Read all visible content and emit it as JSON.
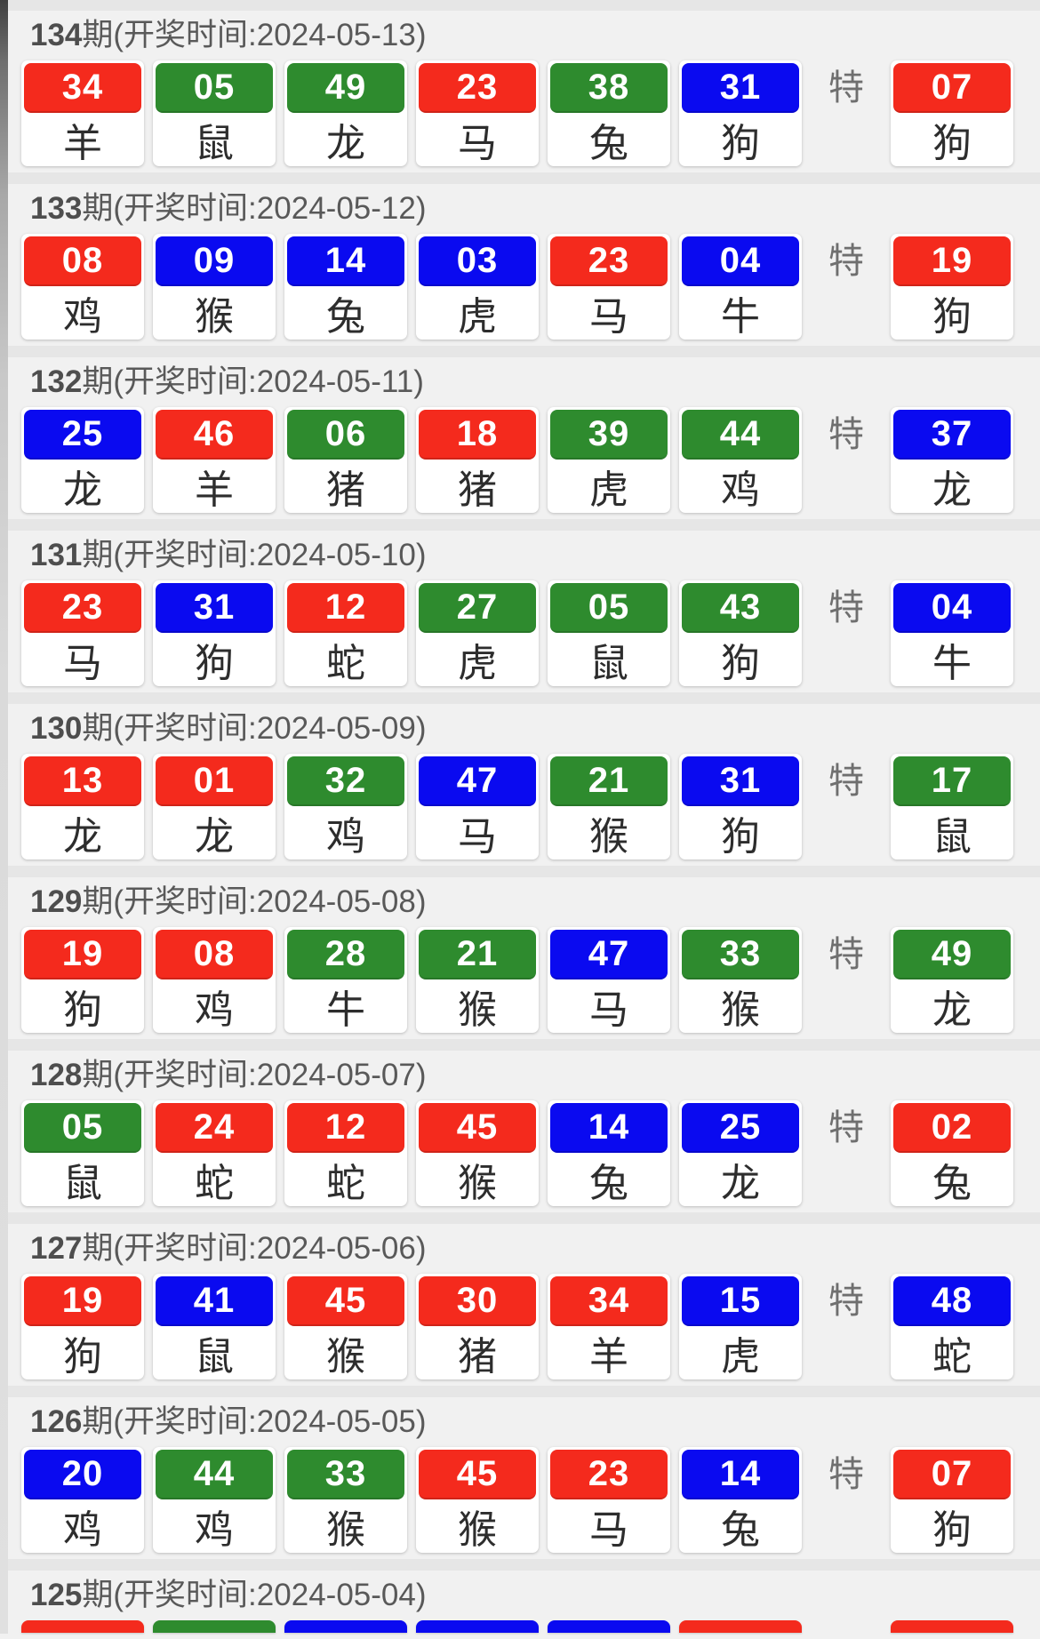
{
  "labels": {
    "header_prefix": "期(开奖时间:",
    "header_suffix": ")",
    "special": "特"
  },
  "colors": {
    "red": "#f42a1d",
    "green": "#2e8b2e",
    "blue": "#0a0af0"
  },
  "draws": [
    {
      "period": "134",
      "date": "2024-05-13",
      "balls": [
        {
          "num": "34",
          "color": "red",
          "zodiac": "羊"
        },
        {
          "num": "05",
          "color": "green",
          "zodiac": "鼠"
        },
        {
          "num": "49",
          "color": "green",
          "zodiac": "龙"
        },
        {
          "num": "23",
          "color": "red",
          "zodiac": "马"
        },
        {
          "num": "38",
          "color": "green",
          "zodiac": "兔"
        },
        {
          "num": "31",
          "color": "blue",
          "zodiac": "狗"
        }
      ],
      "special": {
        "num": "07",
        "color": "red",
        "zodiac": "狗"
      }
    },
    {
      "period": "133",
      "date": "2024-05-12",
      "balls": [
        {
          "num": "08",
          "color": "red",
          "zodiac": "鸡"
        },
        {
          "num": "09",
          "color": "blue",
          "zodiac": "猴"
        },
        {
          "num": "14",
          "color": "blue",
          "zodiac": "兔"
        },
        {
          "num": "03",
          "color": "blue",
          "zodiac": "虎"
        },
        {
          "num": "23",
          "color": "red",
          "zodiac": "马"
        },
        {
          "num": "04",
          "color": "blue",
          "zodiac": "牛"
        }
      ],
      "special": {
        "num": "19",
        "color": "red",
        "zodiac": "狗"
      }
    },
    {
      "period": "132",
      "date": "2024-05-11",
      "balls": [
        {
          "num": "25",
          "color": "blue",
          "zodiac": "龙"
        },
        {
          "num": "46",
          "color": "red",
          "zodiac": "羊"
        },
        {
          "num": "06",
          "color": "green",
          "zodiac": "猪"
        },
        {
          "num": "18",
          "color": "red",
          "zodiac": "猪"
        },
        {
          "num": "39",
          "color": "green",
          "zodiac": "虎"
        },
        {
          "num": "44",
          "color": "green",
          "zodiac": "鸡"
        }
      ],
      "special": {
        "num": "37",
        "color": "blue",
        "zodiac": "龙"
      }
    },
    {
      "period": "131",
      "date": "2024-05-10",
      "balls": [
        {
          "num": "23",
          "color": "red",
          "zodiac": "马"
        },
        {
          "num": "31",
          "color": "blue",
          "zodiac": "狗"
        },
        {
          "num": "12",
          "color": "red",
          "zodiac": "蛇"
        },
        {
          "num": "27",
          "color": "green",
          "zodiac": "虎"
        },
        {
          "num": "05",
          "color": "green",
          "zodiac": "鼠"
        },
        {
          "num": "43",
          "color": "green",
          "zodiac": "狗"
        }
      ],
      "special": {
        "num": "04",
        "color": "blue",
        "zodiac": "牛"
      }
    },
    {
      "period": "130",
      "date": "2024-05-09",
      "balls": [
        {
          "num": "13",
          "color": "red",
          "zodiac": "龙"
        },
        {
          "num": "01",
          "color": "red",
          "zodiac": "龙"
        },
        {
          "num": "32",
          "color": "green",
          "zodiac": "鸡"
        },
        {
          "num": "47",
          "color": "blue",
          "zodiac": "马"
        },
        {
          "num": "21",
          "color": "green",
          "zodiac": "猴"
        },
        {
          "num": "31",
          "color": "blue",
          "zodiac": "狗"
        }
      ],
      "special": {
        "num": "17",
        "color": "green",
        "zodiac": "鼠"
      }
    },
    {
      "period": "129",
      "date": "2024-05-08",
      "balls": [
        {
          "num": "19",
          "color": "red",
          "zodiac": "狗"
        },
        {
          "num": "08",
          "color": "red",
          "zodiac": "鸡"
        },
        {
          "num": "28",
          "color": "green",
          "zodiac": "牛"
        },
        {
          "num": "21",
          "color": "green",
          "zodiac": "猴"
        },
        {
          "num": "47",
          "color": "blue",
          "zodiac": "马"
        },
        {
          "num": "33",
          "color": "green",
          "zodiac": "猴"
        }
      ],
      "special": {
        "num": "49",
        "color": "green",
        "zodiac": "龙"
      }
    },
    {
      "period": "128",
      "date": "2024-05-07",
      "balls": [
        {
          "num": "05",
          "color": "green",
          "zodiac": "鼠"
        },
        {
          "num": "24",
          "color": "red",
          "zodiac": "蛇"
        },
        {
          "num": "12",
          "color": "red",
          "zodiac": "蛇"
        },
        {
          "num": "45",
          "color": "red",
          "zodiac": "猴"
        },
        {
          "num": "14",
          "color": "blue",
          "zodiac": "兔"
        },
        {
          "num": "25",
          "color": "blue",
          "zodiac": "龙"
        }
      ],
      "special": {
        "num": "02",
        "color": "red",
        "zodiac": "兔"
      }
    },
    {
      "period": "127",
      "date": "2024-05-06",
      "balls": [
        {
          "num": "19",
          "color": "red",
          "zodiac": "狗"
        },
        {
          "num": "41",
          "color": "blue",
          "zodiac": "鼠"
        },
        {
          "num": "45",
          "color": "red",
          "zodiac": "猴"
        },
        {
          "num": "30",
          "color": "red",
          "zodiac": "猪"
        },
        {
          "num": "34",
          "color": "red",
          "zodiac": "羊"
        },
        {
          "num": "15",
          "color": "blue",
          "zodiac": "虎"
        }
      ],
      "special": {
        "num": "48",
        "color": "blue",
        "zodiac": "蛇"
      }
    },
    {
      "period": "126",
      "date": "2024-05-05",
      "balls": [
        {
          "num": "20",
          "color": "blue",
          "zodiac": "鸡"
        },
        {
          "num": "44",
          "color": "green",
          "zodiac": "鸡"
        },
        {
          "num": "33",
          "color": "green",
          "zodiac": "猴"
        },
        {
          "num": "45",
          "color": "red",
          "zodiac": "猴"
        },
        {
          "num": "23",
          "color": "red",
          "zodiac": "马"
        },
        {
          "num": "14",
          "color": "blue",
          "zodiac": "兔"
        }
      ],
      "special": {
        "num": "07",
        "color": "red",
        "zodiac": "狗"
      }
    },
    {
      "period": "125",
      "date": "2024-05-04",
      "partial": true,
      "ball_colors": [
        "red",
        "green",
        "blue",
        "blue",
        "blue",
        "red"
      ],
      "special_color": "red"
    }
  ]
}
